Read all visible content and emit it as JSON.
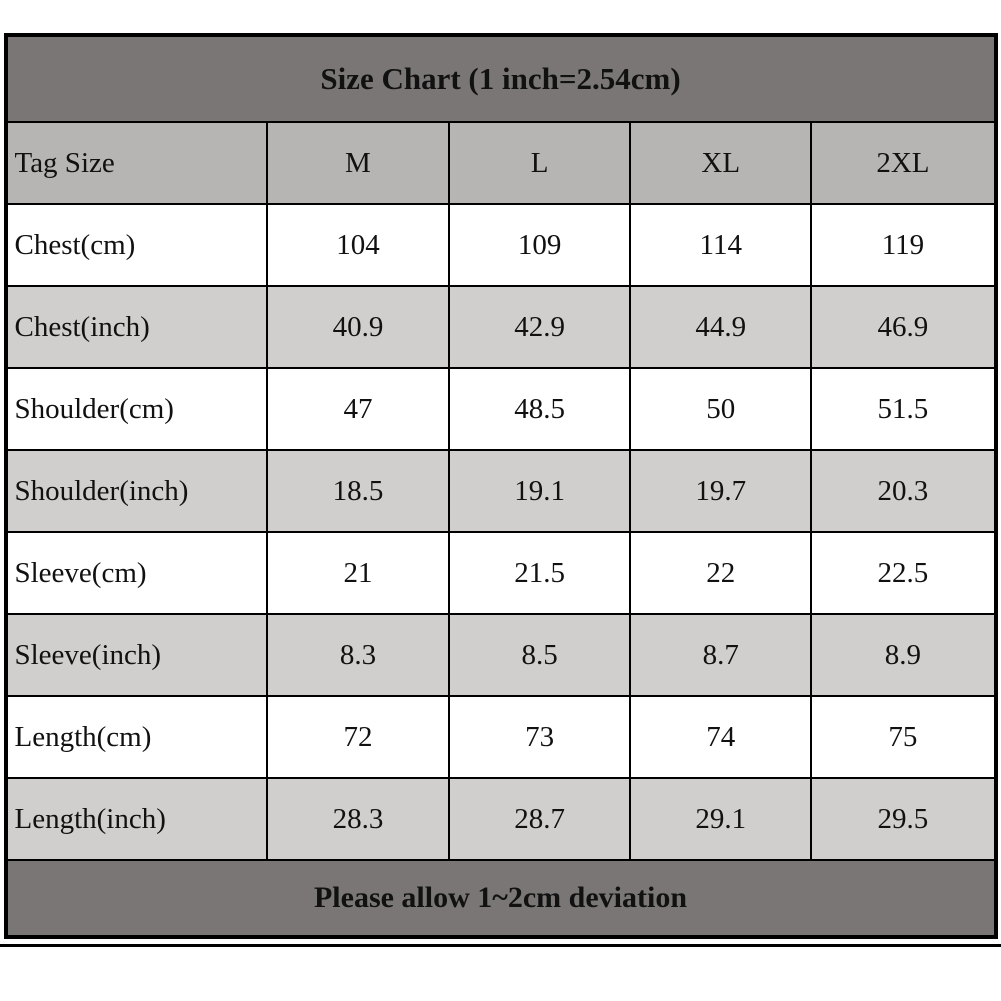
{
  "title": "Size Chart (1 inch=2.54cm)",
  "footer_note": "Please allow 1~2cm deviation",
  "table": {
    "columns": [
      "Tag Size",
      "M",
      "L",
      "XL",
      "2XL"
    ],
    "rows": [
      {
        "label": "Chest(cm)",
        "values": [
          "104",
          "109",
          "114",
          "119"
        ]
      },
      {
        "label": "Chest(inch)",
        "values": [
          "40.9",
          "42.9",
          "44.9",
          "46.9"
        ]
      },
      {
        "label": "Shoulder(cm)",
        "values": [
          "47",
          "48.5",
          "50",
          "51.5"
        ]
      },
      {
        "label": "Shoulder(inch)",
        "values": [
          "18.5",
          "19.1",
          "19.7",
          "20.3"
        ]
      },
      {
        "label": "Sleeve(cm)",
        "values": [
          "21",
          "21.5",
          "22",
          "22.5"
        ]
      },
      {
        "label": "Sleeve(inch)",
        "values": [
          "8.3",
          "8.5",
          "8.7",
          "8.9"
        ]
      },
      {
        "label": "Length(cm)",
        "values": [
          "72",
          "73",
          "74",
          "75"
        ]
      },
      {
        "label": "Length(inch)",
        "values": [
          "28.3",
          "28.7",
          "29.1",
          "29.5"
        ]
      }
    ]
  },
  "colors": {
    "title_bar_bg": "#7a7676",
    "header_row_bg": "#b7b4b4",
    "shaded_row_bg": "#d1cfce",
    "row_bg": "#ffffff",
    "border": "#000000",
    "text": "#111111"
  }
}
